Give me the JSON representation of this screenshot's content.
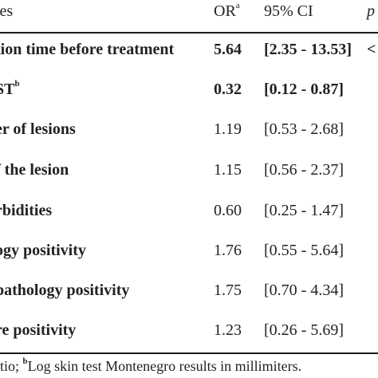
{
  "table": {
    "header": {
      "variable": "les",
      "or": "OR",
      "or_sup": "a",
      "ci": "95% CI",
      "p": "p"
    },
    "rows": [
      {
        "variable": "tion time before treatment",
        "var_sup": "",
        "or": "5.64",
        "ci": "[2.35 - 13.53]",
        "p": "<",
        "bold": true
      },
      {
        "variable": "ST",
        "var_sup": "b",
        "or": "0.32",
        "ci": "[0.12 - 0.87]",
        "p": "",
        "bold": true
      },
      {
        "variable": "er of lesions",
        "var_sup": "",
        "or": "1.19",
        "ci": "[0.53 - 2.68]",
        "p": "",
        "bold": false
      },
      {
        "variable": "f the lesion",
        "var_sup": "",
        "or": "1.15",
        "ci": "[0.56 - 2.37]",
        "p": "",
        "bold": false
      },
      {
        "variable": "rbidities",
        "var_sup": "",
        "or": "0.60",
        "ci": "[0.25 - 1.47]",
        "p": "",
        "bold": false
      },
      {
        "variable": "ogy positivity",
        "var_sup": "",
        "or": "1.76",
        "ci": "[0.55 - 5.64]",
        "p": "",
        "bold": false
      },
      {
        "variable": "pathology positivity",
        "var_sup": "",
        "or": "1.75",
        "ci": "[0.70 - 4.34]",
        "p": "",
        "bold": false
      },
      {
        "variable": "re positivity",
        "var_sup": "",
        "or": "1.23",
        "ci": "[0.26 - 5.69]",
        "p": "",
        "bold": false
      }
    ]
  },
  "footnote": {
    "part1": "atio; ",
    "sup": "b",
    "part2": "Log skin test Montenegro results in millimiters."
  }
}
